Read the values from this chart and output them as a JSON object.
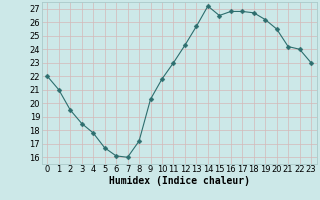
{
  "x": [
    0,
    1,
    2,
    3,
    4,
    5,
    6,
    7,
    8,
    9,
    10,
    11,
    12,
    13,
    14,
    15,
    16,
    17,
    18,
    19,
    20,
    21,
    22,
    23
  ],
  "y": [
    22,
    21,
    19.5,
    18.5,
    17.8,
    16.7,
    16.1,
    16.0,
    17.2,
    20.3,
    21.8,
    23.0,
    24.3,
    25.7,
    27.2,
    26.5,
    26.8,
    26.8,
    26.7,
    26.2,
    25.5,
    24.2,
    24.0,
    23.0
  ],
  "line_color": "#2d6e6e",
  "marker": "D",
  "marker_size": 2.5,
  "bg_color": "#cce8e8",
  "grid_minor_color": "#b8d8d8",
  "grid_major_color": "#aacaca",
  "xlabel": "Humidex (Indice chaleur)",
  "xlim": [
    -0.5,
    23.5
  ],
  "ylim": [
    15.5,
    27.5
  ],
  "yticks": [
    16,
    17,
    18,
    19,
    20,
    21,
    22,
    23,
    24,
    25,
    26,
    27
  ],
  "xticks": [
    0,
    1,
    2,
    3,
    4,
    5,
    6,
    7,
    8,
    9,
    10,
    11,
    12,
    13,
    14,
    15,
    16,
    17,
    18,
    19,
    20,
    21,
    22,
    23
  ],
  "xlabel_fontsize": 7,
  "tick_fontsize": 6
}
